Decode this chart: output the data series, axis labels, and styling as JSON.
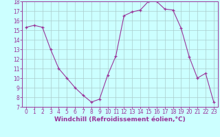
{
  "x": [
    0,
    1,
    2,
    3,
    4,
    5,
    6,
    7,
    8,
    9,
    10,
    11,
    12,
    13,
    14,
    15,
    16,
    17,
    18,
    19,
    20,
    21,
    22,
    23
  ],
  "y": [
    15.3,
    15.5,
    15.3,
    13.0,
    11.0,
    10.0,
    9.0,
    8.2,
    7.5,
    7.8,
    10.3,
    12.3,
    16.5,
    16.9,
    17.1,
    18.0,
    18.0,
    17.2,
    17.1,
    15.2,
    12.2,
    10.0,
    10.5,
    7.5
  ],
  "line_color": "#993399",
  "marker_color": "#993399",
  "bg_color": "#ccffff",
  "grid_color": "#aacccc",
  "xlabel": "Windchill (Refroidissement éolien,°C)",
  "xlabel_color": "#993399",
  "ylim": [
    7,
    18
  ],
  "xlim_min": -0.5,
  "xlim_max": 23.5,
  "yticks": [
    7,
    8,
    9,
    10,
    11,
    12,
    13,
    14,
    15,
    16,
    17,
    18
  ],
  "xticks": [
    0,
    1,
    2,
    3,
    4,
    5,
    6,
    7,
    8,
    9,
    10,
    11,
    12,
    13,
    14,
    15,
    16,
    17,
    18,
    19,
    20,
    21,
    22,
    23
  ],
  "tick_color": "#993399",
  "spine_color": "#993399",
  "font_size_label": 6.5,
  "font_size_tick": 5.5
}
